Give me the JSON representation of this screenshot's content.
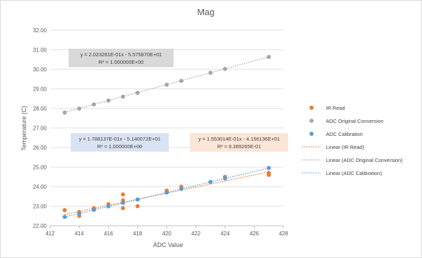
{
  "chart_data": {
    "type": "scatter",
    "title": "Mag",
    "xlabel": "ADC Value",
    "ylabel": "Temperature (C)",
    "xlim": [
      412,
      428
    ],
    "ylim": [
      22.0,
      32.0
    ],
    "xticks": [
      412,
      414,
      416,
      418,
      420,
      422,
      424,
      426,
      428
    ],
    "yticks": [
      "22.00",
      "23.00",
      "24.00",
      "25.00",
      "26.00",
      "27.00",
      "28.00",
      "29.00",
      "30.00",
      "31.00",
      "32.00"
    ],
    "grid": "horizontal",
    "legend_position": "right",
    "series": [
      {
        "name": "IR Read",
        "color": "#ed7d31",
        "marker": "circle",
        "points": [
          [
            413,
            22.8
          ],
          [
            414,
            22.7
          ],
          [
            414,
            22.5
          ],
          [
            415,
            22.9
          ],
          [
            416,
            23.1
          ],
          [
            417,
            23.6
          ],
          [
            417,
            23.3
          ],
          [
            417,
            22.9
          ],
          [
            418,
            23.0
          ],
          [
            420,
            23.8
          ],
          [
            421,
            24.0
          ],
          [
            424,
            24.5
          ],
          [
            427,
            24.7
          ],
          [
            427,
            24.6
          ]
        ]
      },
      {
        "name": "ADC Original  Conversion",
        "color": "#a5a5a5",
        "marker": "circle",
        "points": [
          [
            413,
            27.79
          ],
          [
            414,
            27.99
          ],
          [
            415,
            28.2
          ],
          [
            416,
            28.4
          ],
          [
            417,
            28.6
          ],
          [
            418,
            28.8
          ],
          [
            420,
            29.21
          ],
          [
            421,
            29.41
          ],
          [
            423,
            29.82
          ],
          [
            424,
            30.02
          ],
          [
            427,
            30.63
          ]
        ]
      },
      {
        "name": "ADC Calibration",
        "color": "#5b9bd5",
        "marker": "circle",
        "points": [
          [
            413,
            22.45
          ],
          [
            414,
            22.63
          ],
          [
            415,
            22.81
          ],
          [
            416,
            22.99
          ],
          [
            417,
            23.17
          ],
          [
            418,
            23.34
          ],
          [
            420,
            23.7
          ],
          [
            421,
            23.88
          ],
          [
            423,
            24.24
          ],
          [
            424,
            24.42
          ],
          [
            427,
            24.95
          ]
        ]
      }
    ],
    "trendlines": [
      {
        "name": "Linear (IR Read)",
        "color": "#ed7d31",
        "slope": 0.1553014,
        "intercept": -41.56136,
        "x_range": [
          413,
          427
        ],
        "equation": "y = 1.553014E-01x - 4.156136E+01",
        "r2": "R² = 9.389265E-01",
        "box_color": "#fbe5d6"
      },
      {
        "name": "Linear (ADC Original  Conversion)",
        "color": "#a5a5a5",
        "slope": 0.2023261,
        "intercept": -55.7587,
        "x_range": [
          413,
          427
        ],
        "equation": "y = 2.023261E-01x - 5.575870E+01",
        "r2": "R² = 1.000000E+00",
        "box_color": "#d9d9d9"
      },
      {
        "name": "Linear (ADC Calibration)",
        "color": "#5b9bd5",
        "slope": 0.1788137,
        "intercept": -51.40072,
        "x_range": [
          413,
          427
        ],
        "equation": "y = 1.788137E-01x - 5.140072E+01",
        "r2": "R² = 1.000000E+00",
        "box_color": "#dae3f3"
      }
    ]
  }
}
